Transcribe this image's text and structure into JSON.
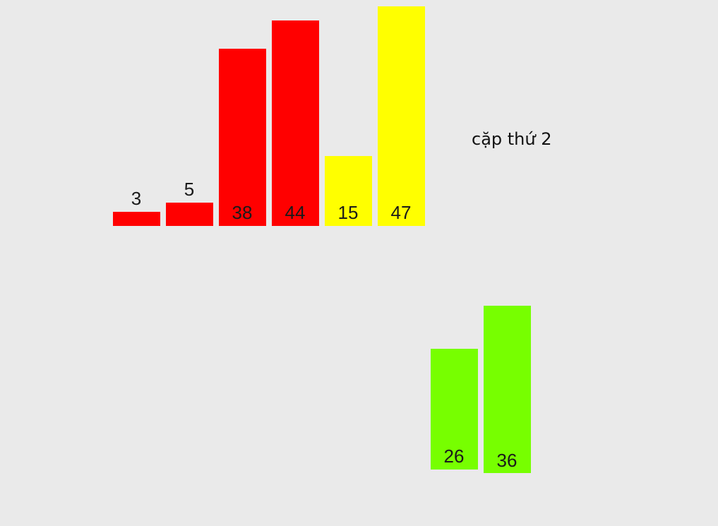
{
  "caption": "cặp thứ 2",
  "colors": {
    "background": "#eaeaea",
    "red": "#ff0000",
    "yellow": "#ffff00",
    "green": "#77ff00"
  },
  "top_row": [
    {
      "value": 3,
      "label": "3",
      "color": "red"
    },
    {
      "value": 5,
      "label": "5",
      "color": "red"
    },
    {
      "value": 38,
      "label": "38",
      "color": "red"
    },
    {
      "value": 44,
      "label": "44",
      "color": "red"
    },
    {
      "value": 15,
      "label": "15",
      "color": "yellow"
    },
    {
      "value": 47,
      "label": "47",
      "color": "yellow"
    }
  ],
  "bottom_row": [
    {
      "value": 26,
      "label": "26",
      "color": "green"
    },
    {
      "value": 36,
      "label": "36",
      "color": "green"
    }
  ]
}
